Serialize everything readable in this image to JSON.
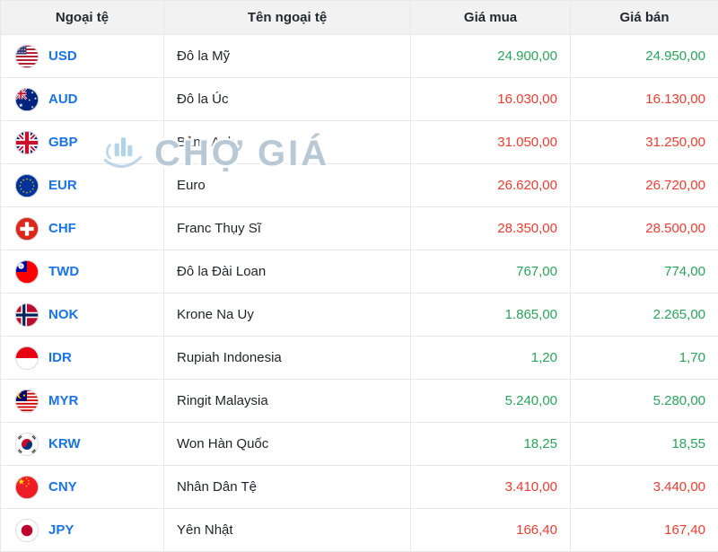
{
  "watermark": {
    "text": "CHỢ GIÁ"
  },
  "colors": {
    "up": "#2aa35a",
    "down": "#ef3b30",
    "code": "#1a73e8",
    "header_bg": "#f2f2f2",
    "border": "#e6e8ea"
  },
  "table": {
    "headers": [
      "Ngoại tệ",
      "Tên ngoại tệ",
      "Giá mua",
      "Giá bán"
    ],
    "rows": [
      {
        "code": "USD",
        "flag": "us",
        "name": "Đô la Mỹ",
        "buy": "24.900,00",
        "sell": "24.950,00",
        "trend": "up"
      },
      {
        "code": "AUD",
        "flag": "au",
        "name": "Đô la Úc",
        "buy": "16.030,00",
        "sell": "16.130,00",
        "trend": "down"
      },
      {
        "code": "GBP",
        "flag": "gb",
        "name": "Bảng Anh",
        "buy": "31.050,00",
        "sell": "31.250,00",
        "trend": "down"
      },
      {
        "code": "EUR",
        "flag": "eu",
        "name": "Euro",
        "buy": "26.620,00",
        "sell": "26.720,00",
        "trend": "down"
      },
      {
        "code": "CHF",
        "flag": "ch",
        "name": "Franc Thụy Sĩ",
        "buy": "28.350,00",
        "sell": "28.500,00",
        "trend": "down"
      },
      {
        "code": "TWD",
        "flag": "tw",
        "name": "Đô la Đài Loan",
        "buy": "767,00",
        "sell": "774,00",
        "trend": "up"
      },
      {
        "code": "NOK",
        "flag": "no",
        "name": "Krone Na Uy",
        "buy": "1.865,00",
        "sell": "2.265,00",
        "trend": "up"
      },
      {
        "code": "IDR",
        "flag": "id",
        "name": "Rupiah Indonesia",
        "buy": "1,20",
        "sell": "1,70",
        "trend": "up"
      },
      {
        "code": "MYR",
        "flag": "my",
        "name": "Ringit Malaysia",
        "buy": "5.240,00",
        "sell": "5.280,00",
        "trend": "up"
      },
      {
        "code": "KRW",
        "flag": "kr",
        "name": "Won Hàn Quốc",
        "buy": "18,25",
        "sell": "18,55",
        "trend": "up"
      },
      {
        "code": "CNY",
        "flag": "cn",
        "name": "Nhân Dân Tệ",
        "buy": "3.410,00",
        "sell": "3.440,00",
        "trend": "down"
      },
      {
        "code": "JPY",
        "flag": "jp",
        "name": "Yên Nhật",
        "buy": "166,40",
        "sell": "167,40",
        "trend": "down"
      }
    ]
  },
  "chart_data": {
    "type": "table",
    "columns": [
      "Ngoại tệ",
      "Tên ngoại tệ",
      "Giá mua",
      "Giá bán"
    ],
    "rows": [
      [
        "USD",
        "Đô la Mỹ",
        "24.900,00",
        "24.950,00",
        "up"
      ],
      [
        "AUD",
        "Đô la Úc",
        "16.030,00",
        "16.130,00",
        "down"
      ],
      [
        "GBP",
        "Bảng Anh",
        "31.050,00",
        "31.250,00",
        "down"
      ],
      [
        "EUR",
        "Euro",
        "26.620,00",
        "26.720,00",
        "down"
      ],
      [
        "CHF",
        "Franc Thụy Sĩ",
        "28.350,00",
        "28.500,00",
        "down"
      ],
      [
        "TWD",
        "Đô la Đài Loan",
        "767,00",
        "774,00",
        "up"
      ],
      [
        "NOK",
        "Krone Na Uy",
        "1.865,00",
        "2.265,00",
        "up"
      ],
      [
        "IDR",
        "Rupiah Indonesia",
        "1,20",
        "1,70",
        "up"
      ],
      [
        "MYR",
        "Ringit Malaysia",
        "5.240,00",
        "5.280,00",
        "up"
      ],
      [
        "KRW",
        "Won Hàn Quốc",
        "18,25",
        "18,55",
        "up"
      ],
      [
        "CNY",
        "Nhân Dân Tệ",
        "3.410,00",
        "3.440,00",
        "down"
      ],
      [
        "JPY",
        "Yên Nhật",
        "166,40",
        "167,40",
        "down"
      ]
    ]
  }
}
